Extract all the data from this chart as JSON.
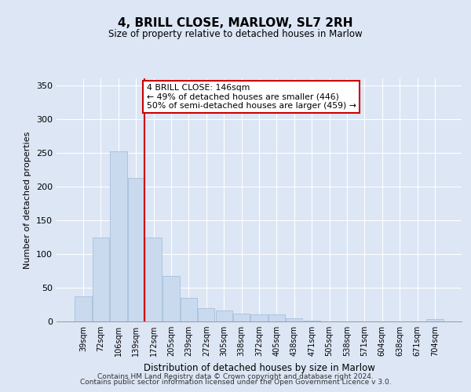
{
  "title": "4, BRILL CLOSE, MARLOW, SL7 2RH",
  "subtitle": "Size of property relative to detached houses in Marlow",
  "xlabel": "Distribution of detached houses by size in Marlow",
  "ylabel": "Number of detached properties",
  "bar_color": "#c9d9ee",
  "bar_edge_color": "#a8c0da",
  "categories": [
    "39sqm",
    "72sqm",
    "106sqm",
    "139sqm",
    "172sqm",
    "205sqm",
    "239sqm",
    "272sqm",
    "305sqm",
    "338sqm",
    "372sqm",
    "405sqm",
    "438sqm",
    "471sqm",
    "505sqm",
    "538sqm",
    "571sqm",
    "604sqm",
    "638sqm",
    "671sqm",
    "704sqm"
  ],
  "values": [
    37,
    124,
    252,
    212,
    124,
    67,
    35,
    20,
    16,
    12,
    10,
    10,
    5,
    1,
    0,
    0,
    0,
    0,
    0,
    0,
    4
  ],
  "vline_index": 3,
  "vline_color": "#cc0000",
  "annotation_text": "4 BRILL CLOSE: 146sqm\n← 49% of detached houses are smaller (446)\n50% of semi-detached houses are larger (459) →",
  "annotation_box_color": "#ffffff",
  "annotation_box_edge": "#cc0000",
  "ylim": [
    0,
    360
  ],
  "yticks": [
    0,
    50,
    100,
    150,
    200,
    250,
    300,
    350
  ],
  "footer_line1": "Contains HM Land Registry data © Crown copyright and database right 2024.",
  "footer_line2": "Contains public sector information licensed under the Open Government Licence v 3.0.",
  "background_color": "#dce6f5",
  "plot_background": "#dce6f5"
}
